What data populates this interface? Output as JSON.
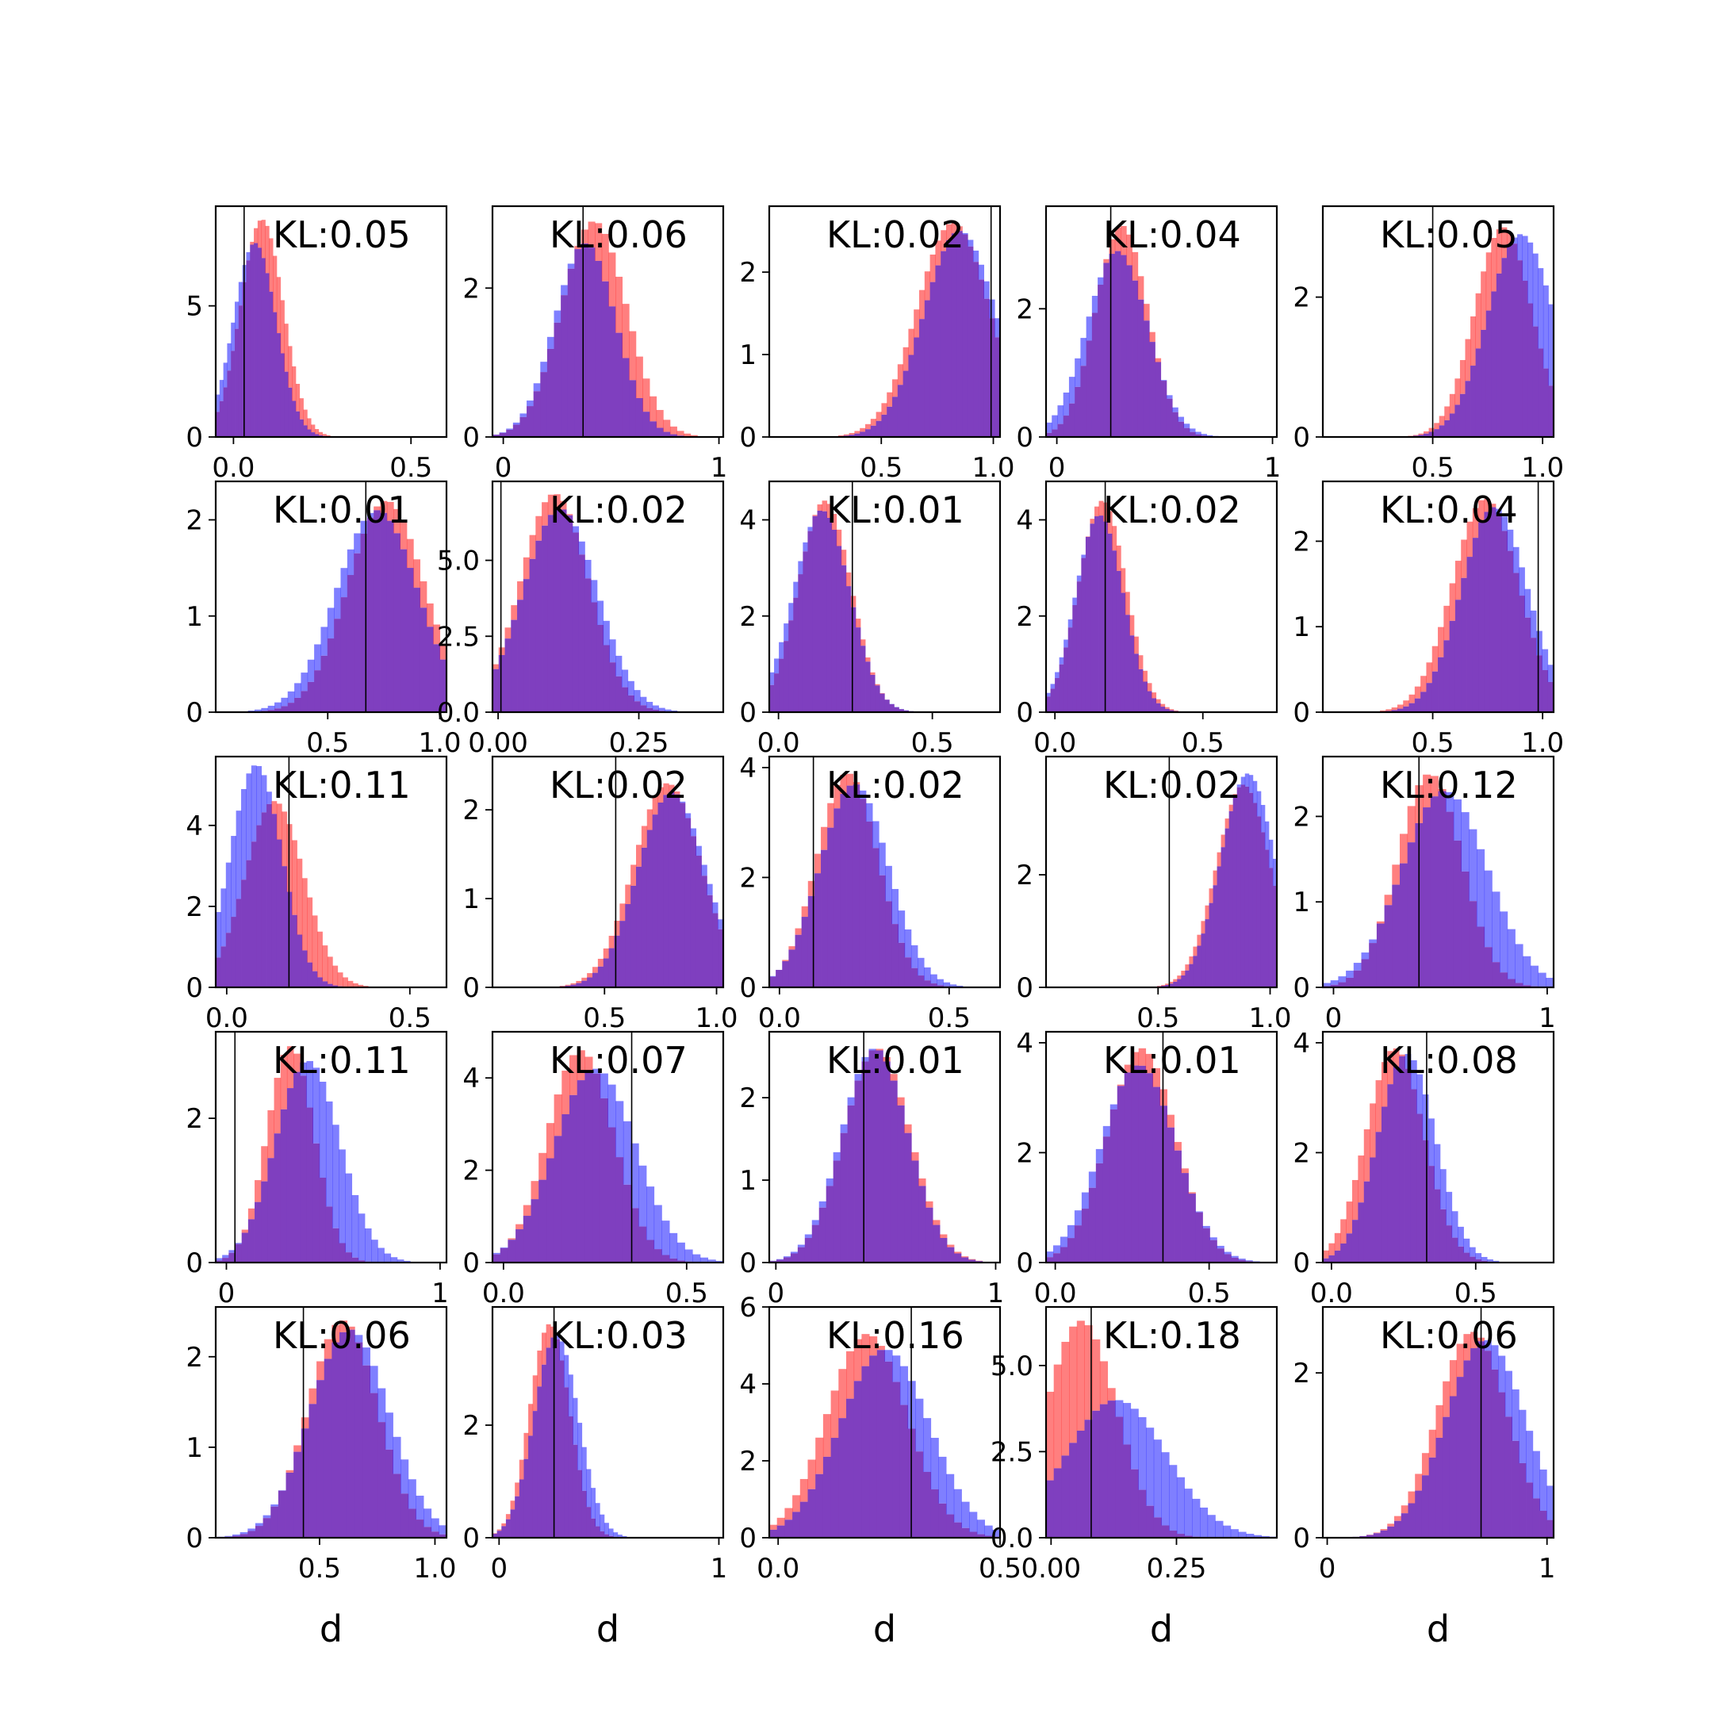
{
  "figure": {
    "background": "#ffffff"
  },
  "colors": {
    "model": "#ff0000",
    "data": "#0000ff",
    "overlap": "#7f3fbf",
    "marker": "#000000"
  },
  "chart_data": [
    {
      "type": "histogram",
      "row": 0,
      "col": 0,
      "annotation": "KL:0.05",
      "xlim": [
        -0.05,
        0.6
      ],
      "ylim": [
        0,
        8.8
      ],
      "xticks": [
        0.0,
        0.5
      ],
      "xtick_labels": [
        "0.0",
        "0.5"
      ],
      "yticks": [
        0,
        5
      ],
      "ytick_labels": [
        "0",
        "5"
      ],
      "marker_x": 0.03,
      "red": {
        "mean": 0.08,
        "sd": 0.06,
        "peak": 8.3
      },
      "blue": {
        "mean": 0.06,
        "sd": 0.06,
        "peak": 7.4
      }
    },
    {
      "type": "histogram",
      "row": 0,
      "col": 1,
      "annotation": "KL:0.06",
      "xlim": [
        -0.05,
        1.02
      ],
      "ylim": [
        0,
        3.1
      ],
      "xticks": [
        0,
        1
      ],
      "xtick_labels": [
        "0",
        "1"
      ],
      "yticks": [
        0,
        2
      ],
      "ytick_labels": [
        "0",
        "2"
      ],
      "marker_x": 0.37,
      "red": {
        "mean": 0.42,
        "sd": 0.15,
        "peak": 2.9
      },
      "blue": {
        "mean": 0.38,
        "sd": 0.14,
        "peak": 2.6
      }
    },
    {
      "type": "histogram",
      "row": 0,
      "col": 2,
      "annotation": "KL:0.02",
      "xlim": [
        0.0,
        1.03
      ],
      "ylim": [
        0,
        2.8
      ],
      "xticks": [
        0.5,
        1.0
      ],
      "xtick_labels": [
        "0.5",
        "1.0"
      ],
      "yticks": [
        0,
        1,
        2
      ],
      "ytick_labels": [
        "0",
        "1",
        "2"
      ],
      "marker_x": 0.99,
      "red": {
        "mean": 0.82,
        "sd": 0.16,
        "peak": 2.6
      },
      "blue": {
        "mean": 0.85,
        "sd": 0.16,
        "peak": 2.5
      }
    },
    {
      "type": "histogram",
      "row": 0,
      "col": 3,
      "annotation": "KL:0.04",
      "xlim": [
        -0.05,
        1.02
      ],
      "ylim": [
        0,
        3.6
      ],
      "xticks": [
        0,
        1
      ],
      "xtick_labels": [
        "0",
        "1"
      ],
      "yticks": [
        0,
        2
      ],
      "ytick_labels": [
        "0",
        "2"
      ],
      "marker_x": 0.25,
      "red": {
        "mean": 0.3,
        "sd": 0.12,
        "peak": 3.3
      },
      "blue": {
        "mean": 0.28,
        "sd": 0.14,
        "peak": 2.9
      }
    },
    {
      "type": "histogram",
      "row": 0,
      "col": 4,
      "annotation": "KL:0.05",
      "xlim": [
        0.0,
        1.05
      ],
      "ylim": [
        0,
        3.3
      ],
      "xticks": [
        0.5,
        1.0
      ],
      "xtick_labels": [
        "0.5",
        "1.0"
      ],
      "yticks": [
        0,
        2
      ],
      "ytick_labels": [
        "0",
        "2"
      ],
      "marker_x": 0.5,
      "red": {
        "mean": 0.82,
        "sd": 0.13,
        "peak": 3.0
      },
      "blue": {
        "mean": 0.9,
        "sd": 0.15,
        "peak": 2.9
      }
    },
    {
      "type": "histogram",
      "row": 1,
      "col": 0,
      "annotation": "KL:0.01",
      "xlim": [
        0.0,
        1.03
      ],
      "ylim": [
        0,
        2.4
      ],
      "xticks": [
        0.5,
        1.0
      ],
      "xtick_labels": [
        "0.5",
        "1.0"
      ],
      "yticks": [
        0,
        1,
        2
      ],
      "ytick_labels": [
        "0",
        "1",
        "2"
      ],
      "marker_x": 0.67,
      "red": {
        "mean": 0.76,
        "sd": 0.17,
        "peak": 2.2
      },
      "blue": {
        "mean": 0.72,
        "sd": 0.18,
        "peak": 2.1
      }
    },
    {
      "type": "histogram",
      "row": 1,
      "col": 1,
      "annotation": "KL:0.02",
      "xlim": [
        -0.01,
        0.4
      ],
      "ylim": [
        0,
        7.6
      ],
      "xticks": [
        0.0,
        0.25
      ],
      "xtick_labels": [
        "0.00",
        "0.25"
      ],
      "yticks": [
        0,
        2.5,
        5.0
      ],
      "ytick_labels": [
        "0.0",
        "2.5",
        "5.0"
      ],
      "marker_x": 0.005,
      "red": {
        "mean": 0.1,
        "sd": 0.06,
        "peak": 7.2
      },
      "blue": {
        "mean": 0.11,
        "sd": 0.065,
        "peak": 6.7
      }
    },
    {
      "type": "histogram",
      "row": 1,
      "col": 2,
      "annotation": "KL:0.01",
      "xlim": [
        -0.03,
        0.72
      ],
      "ylim": [
        0,
        4.8
      ],
      "xticks": [
        0.0,
        0.5
      ],
      "xtick_labels": [
        "0.0",
        "0.5"
      ],
      "yticks": [
        0,
        2,
        4
      ],
      "ytick_labels": [
        "0",
        "2",
        "4"
      ],
      "marker_x": 0.24,
      "red": {
        "mean": 0.15,
        "sd": 0.085,
        "peak": 4.4
      },
      "blue": {
        "mean": 0.14,
        "sd": 0.09,
        "peak": 4.2
      }
    },
    {
      "type": "histogram",
      "row": 1,
      "col": 3,
      "annotation": "KL:0.02",
      "xlim": [
        -0.03,
        0.75
      ],
      "ylim": [
        0,
        4.8
      ],
      "xticks": [
        0.0,
        0.5
      ],
      "xtick_labels": [
        "0.0",
        "0.5"
      ],
      "yticks": [
        0,
        2,
        4
      ],
      "ytick_labels": [
        "0",
        "2",
        "4"
      ],
      "marker_x": 0.17,
      "red": {
        "mean": 0.16,
        "sd": 0.08,
        "peak": 4.4
      },
      "blue": {
        "mean": 0.15,
        "sd": 0.08,
        "peak": 4.1
      }
    },
    {
      "type": "histogram",
      "row": 1,
      "col": 4,
      "annotation": "KL:0.04",
      "xlim": [
        0.0,
        1.05
      ],
      "ylim": [
        0,
        2.7
      ],
      "xticks": [
        0.5,
        1.0
      ],
      "xtick_labels": [
        "0.5",
        "1.0"
      ],
      "yticks": [
        0,
        1,
        2
      ],
      "ytick_labels": [
        "0",
        "1",
        "2"
      ],
      "marker_x": 0.98,
      "red": {
        "mean": 0.74,
        "sd": 0.15,
        "peak": 2.5
      },
      "blue": {
        "mean": 0.78,
        "sd": 0.15,
        "peak": 2.4
      }
    },
    {
      "type": "histogram",
      "row": 2,
      "col": 0,
      "annotation": "KL:0.11",
      "xlim": [
        -0.03,
        0.6
      ],
      "ylim": [
        0,
        5.7
      ],
      "xticks": [
        0.0,
        0.5
      ],
      "xtick_labels": [
        "0.0",
        "0.5"
      ],
      "yticks": [
        0,
        2,
        4
      ],
      "ytick_labels": [
        "0",
        "2",
        "4"
      ],
      "marker_x": 0.17,
      "red": {
        "mean": 0.13,
        "sd": 0.08,
        "peak": 4.6
      },
      "blue": {
        "mean": 0.08,
        "sd": 0.07,
        "peak": 5.5
      }
    },
    {
      "type": "histogram",
      "row": 2,
      "col": 1,
      "annotation": "KL:0.02",
      "xlim": [
        0.0,
        1.03
      ],
      "ylim": [
        0,
        2.6
      ],
      "xticks": [
        0.5,
        1.0
      ],
      "xtick_labels": [
        "0.5",
        "1.0"
      ],
      "yticks": [
        0,
        1,
        2
      ],
      "ytick_labels": [
        "0",
        "1",
        "2"
      ],
      "marker_x": 0.55,
      "red": {
        "mean": 0.78,
        "sd": 0.15,
        "peak": 2.3
      },
      "blue": {
        "mean": 0.8,
        "sd": 0.15,
        "peak": 2.2
      }
    },
    {
      "type": "histogram",
      "row": 2,
      "col": 2,
      "annotation": "KL:0.02",
      "xlim": [
        -0.03,
        0.65
      ],
      "ylim": [
        0,
        4.2
      ],
      "xticks": [
        0.0,
        0.5
      ],
      "xtick_labels": [
        "0.0",
        "0.5"
      ],
      "yticks": [
        0,
        2,
        4
      ],
      "ytick_labels": [
        "0",
        "2",
        "4"
      ],
      "marker_x": 0.1,
      "red": {
        "mean": 0.2,
        "sd": 0.09,
        "peak": 3.9
      },
      "blue": {
        "mean": 0.22,
        "sd": 0.1,
        "peak": 3.7
      }
    },
    {
      "type": "histogram",
      "row": 2,
      "col": 3,
      "annotation": "KL:0.02",
      "xlim": [
        0.0,
        1.03
      ],
      "ylim": [
        0,
        4.1
      ],
      "xticks": [
        0.5,
        1.0
      ],
      "xtick_labels": [
        "0.5",
        "1.0"
      ],
      "yticks": [
        0,
        2
      ],
      "ytick_labels": [
        "0",
        "2"
      ],
      "marker_x": 0.55,
      "red": {
        "mean": 0.88,
        "sd": 0.12,
        "peak": 3.6
      },
      "blue": {
        "mean": 0.9,
        "sd": 0.12,
        "peak": 3.8
      }
    },
    {
      "type": "histogram",
      "row": 2,
      "col": 4,
      "annotation": "KL:0.12",
      "xlim": [
        -0.05,
        1.03
      ],
      "ylim": [
        0,
        2.7
      ],
      "xticks": [
        0,
        1
      ],
      "xtick_labels": [
        "0",
        "1"
      ],
      "yticks": [
        0,
        1,
        2
      ],
      "ytick_labels": [
        "0",
        "1",
        "2"
      ],
      "marker_x": 0.4,
      "red": {
        "mean": 0.45,
        "sd": 0.15,
        "peak": 2.5
      },
      "blue": {
        "mean": 0.52,
        "sd": 0.2,
        "peak": 2.3
      }
    },
    {
      "type": "histogram",
      "row": 3,
      "col": 0,
      "annotation": "KL:0.11",
      "xlim": [
        -0.05,
        1.03
      ],
      "ylim": [
        0,
        3.2
      ],
      "xticks": [
        0,
        1
      ],
      "xtick_labels": [
        "0",
        "1"
      ],
      "yticks": [
        0,
        2
      ],
      "ytick_labels": [
        "0",
        "2"
      ],
      "marker_x": 0.04,
      "red": {
        "mean": 0.3,
        "sd": 0.11,
        "peak": 3.0
      },
      "blue": {
        "mean": 0.38,
        "sd": 0.15,
        "peak": 2.8
      }
    },
    {
      "type": "histogram",
      "row": 3,
      "col": 1,
      "annotation": "KL:0.07",
      "xlim": [
        -0.03,
        0.6
      ],
      "ylim": [
        0,
        5.0
      ],
      "xticks": [
        0.0,
        0.5
      ],
      "xtick_labels": [
        "0.0",
        "0.5"
      ],
      "yticks": [
        0,
        2,
        4
      ],
      "ytick_labels": [
        "0",
        "2",
        "4"
      ],
      "marker_x": 0.35,
      "red": {
        "mean": 0.21,
        "sd": 0.09,
        "peak": 4.6
      },
      "blue": {
        "mean": 0.25,
        "sd": 0.11,
        "peak": 4.2
      }
    },
    {
      "type": "histogram",
      "row": 3,
      "col": 2,
      "annotation": "KL:0.01",
      "xlim": [
        -0.03,
        1.02
      ],
      "ylim": [
        0,
        2.8
      ],
      "xticks": [
        0,
        1
      ],
      "xtick_labels": [
        "0",
        "1"
      ],
      "yticks": [
        0,
        1,
        2
      ],
      "ytick_labels": [
        "0",
        "1",
        "2"
      ],
      "marker_x": 0.4,
      "red": {
        "mean": 0.46,
        "sd": 0.15,
        "peak": 2.6
      },
      "blue": {
        "mean": 0.45,
        "sd": 0.15,
        "peak": 2.6
      }
    },
    {
      "type": "histogram",
      "row": 3,
      "col": 3,
      "annotation": "KL:0.01",
      "xlim": [
        -0.03,
        0.72
      ],
      "ylim": [
        0,
        4.2
      ],
      "xticks": [
        0.0,
        0.5
      ],
      "xtick_labels": [
        "0.0",
        "0.5"
      ],
      "yticks": [
        0,
        2,
        4
      ],
      "ytick_labels": [
        "0",
        "2",
        "4"
      ],
      "marker_x": 0.35,
      "red": {
        "mean": 0.28,
        "sd": 0.11,
        "peak": 3.9
      },
      "blue": {
        "mean": 0.27,
        "sd": 0.12,
        "peak": 3.6
      }
    },
    {
      "type": "histogram",
      "row": 3,
      "col": 4,
      "annotation": "KL:0.08",
      "xlim": [
        -0.03,
        0.77
      ],
      "ylim": [
        0,
        4.2
      ],
      "xticks": [
        0.0,
        0.5
      ],
      "xtick_labels": [
        "0.0",
        "0.5"
      ],
      "yticks": [
        0,
        2,
        4
      ],
      "ytick_labels": [
        "0",
        "2",
        "4"
      ],
      "marker_x": 0.33,
      "red": {
        "mean": 0.22,
        "sd": 0.1,
        "peak": 3.9
      },
      "blue": {
        "mean": 0.26,
        "sd": 0.1,
        "peak": 3.8
      }
    },
    {
      "type": "histogram",
      "row": 4,
      "col": 0,
      "annotation": "KL:0.06",
      "xlim": [
        0.05,
        1.05
      ],
      "ylim": [
        0,
        2.55
      ],
      "xticks": [
        0.5,
        1.0
      ],
      "xtick_labels": [
        "0.5",
        "1.0"
      ],
      "yticks": [
        0,
        1,
        2
      ],
      "ytick_labels": [
        "0",
        "1",
        "2"
      ],
      "marker_x": 0.43,
      "red": {
        "mean": 0.6,
        "sd": 0.15,
        "peak": 2.4
      },
      "blue": {
        "mean": 0.63,
        "sd": 0.17,
        "peak": 2.3
      }
    },
    {
      "type": "histogram",
      "row": 4,
      "col": 1,
      "annotation": "KL:0.03",
      "xlim": [
        -0.03,
        1.02
      ],
      "ylim": [
        0,
        4.1
      ],
      "xticks": [
        0,
        1
      ],
      "xtick_labels": [
        "0",
        "1"
      ],
      "yticks": [
        0,
        2
      ],
      "ytick_labels": [
        "0",
        "2"
      ],
      "marker_x": 0.25,
      "red": {
        "mean": 0.23,
        "sd": 0.09,
        "peak": 3.8
      },
      "blue": {
        "mean": 0.26,
        "sd": 0.1,
        "peak": 3.6
      }
    },
    {
      "type": "histogram",
      "row": 4,
      "col": 2,
      "annotation": "KL:0.16",
      "xlim": [
        -0.02,
        0.5
      ],
      "ylim": [
        0,
        6.0
      ],
      "xticks": [
        0.0,
        0.5
      ],
      "xtick_labels": [
        "0.0",
        "0.5"
      ],
      "yticks": [
        0,
        2,
        4,
        6
      ],
      "ytick_labels": [
        "0",
        "2",
        "4",
        "6"
      ],
      "marker_x": 0.3,
      "red": {
        "mean": 0.2,
        "sd": 0.09,
        "peak": 5.3
      },
      "blue": {
        "mean": 0.24,
        "sd": 0.1,
        "peak": 4.9
      }
    },
    {
      "type": "histogram",
      "row": 4,
      "col": 3,
      "annotation": "KL:0.18",
      "xlim": [
        -0.01,
        0.45
      ],
      "ylim": [
        0,
        6.7
      ],
      "xticks": [
        0.0,
        0.25
      ],
      "xtick_labels": [
        "0.00",
        "0.25"
      ],
      "yticks": [
        0,
        2.5,
        5.0
      ],
      "ytick_labels": [
        "0.0",
        "2.5",
        "5.0"
      ],
      "marker_x": 0.08,
      "red": {
        "mean": 0.06,
        "sd": 0.07,
        "peak": 6.3
      },
      "blue": {
        "mean": 0.13,
        "sd": 0.1,
        "peak": 4.0
      }
    },
    {
      "type": "histogram",
      "row": 4,
      "col": 4,
      "annotation": "KL:0.06",
      "xlim": [
        -0.02,
        1.03
      ],
      "ylim": [
        0,
        2.8
      ],
      "xticks": [
        0,
        1
      ],
      "xtick_labels": [
        "0",
        "1"
      ],
      "yticks": [
        0,
        2
      ],
      "ytick_labels": [
        "0",
        "2"
      ],
      "marker_x": 0.7,
      "red": {
        "mean": 0.66,
        "sd": 0.16,
        "peak": 2.5
      },
      "blue": {
        "mean": 0.72,
        "sd": 0.18,
        "peak": 2.4
      }
    }
  ],
  "xlabel": "d"
}
